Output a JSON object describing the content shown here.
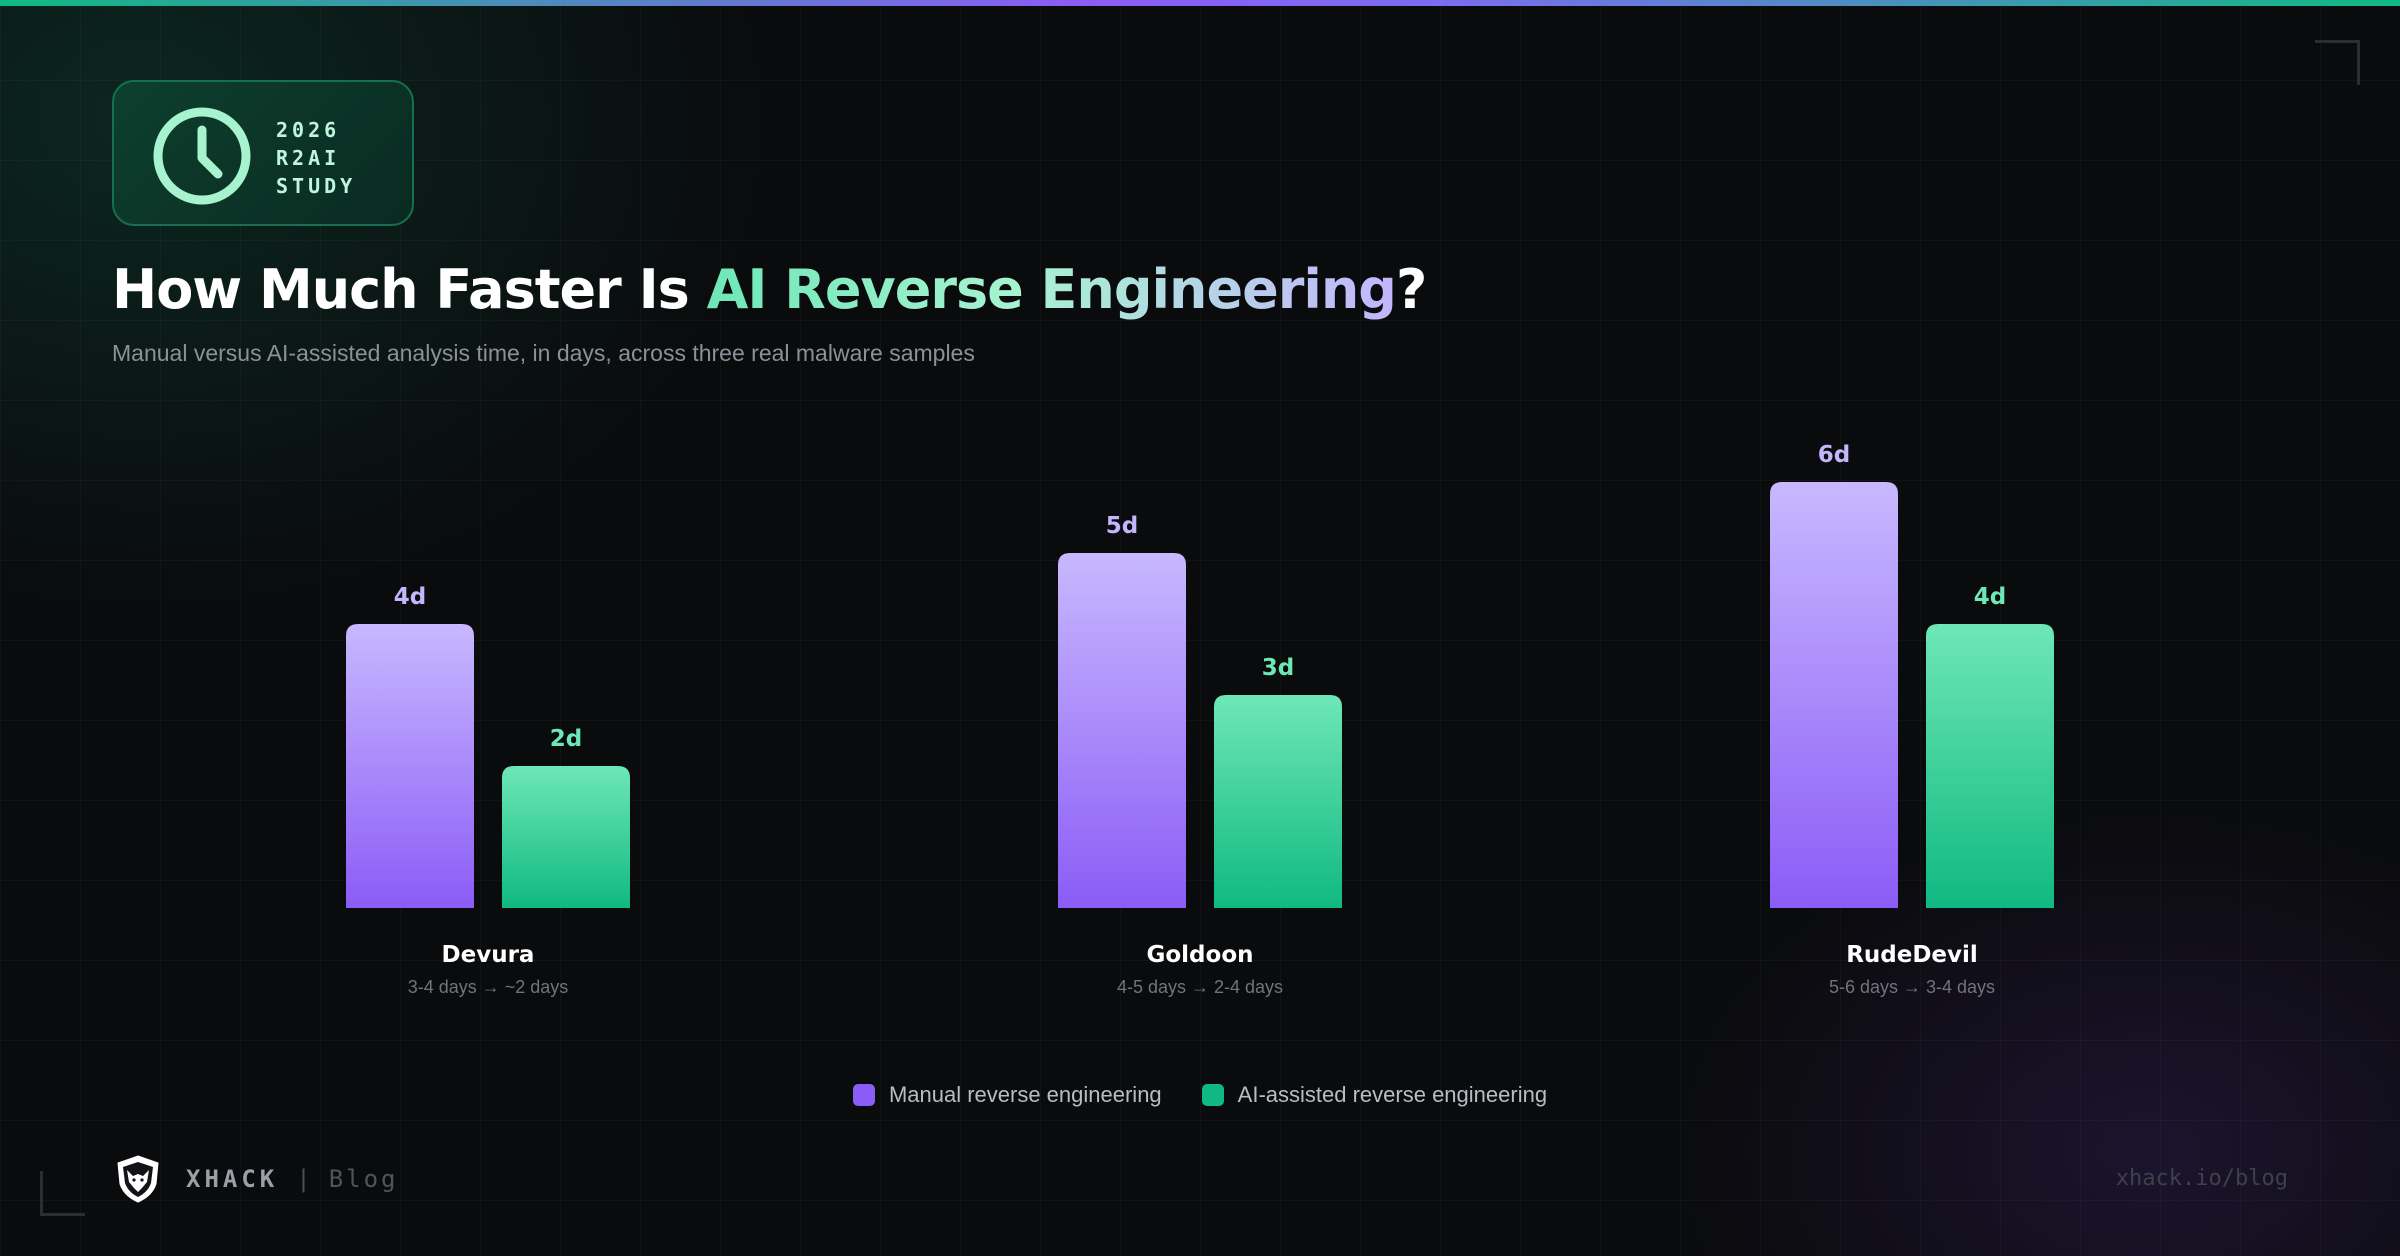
{
  "badge": {
    "line1": "2026",
    "line2": "R2AI",
    "line3": "STUDY",
    "icon": "clock-icon"
  },
  "header": {
    "title_prefix": "How Much Faster Is ",
    "title_highlight": "AI Reverse Engineering",
    "title_suffix": "?",
    "subtitle": "Manual versus AI-assisted analysis time, in days, across three real malware samples"
  },
  "chart_data": {
    "type": "bar",
    "categories": [
      "Devura",
      "Goldoon",
      "RudeDevil"
    ],
    "category_notes": [
      "3-4 days → ~2 days",
      "4-5 days → 2-4 days",
      "5-6 days → 3-4 days"
    ],
    "series": [
      {
        "name": "Manual reverse engineering",
        "values": [
          4,
          5,
          6
        ],
        "labels": [
          "4d",
          "5d",
          "6d"
        ],
        "color": "#8b5cf6"
      },
      {
        "name": "AI-assisted reverse engineering",
        "values": [
          2,
          3,
          4
        ],
        "labels": [
          "2d",
          "3d",
          "4d"
        ],
        "color": "#10b981"
      }
    ],
    "ylim": [
      0,
      6
    ],
    "grid": false,
    "legend": "bottom-center",
    "title": "",
    "xlabel": "",
    "ylabel": ""
  },
  "footer": {
    "brand": "XHACK",
    "separator": "|",
    "sub": "Blog",
    "url": "xhack.io/blog",
    "logo_icon": "wolf-shield-icon"
  }
}
